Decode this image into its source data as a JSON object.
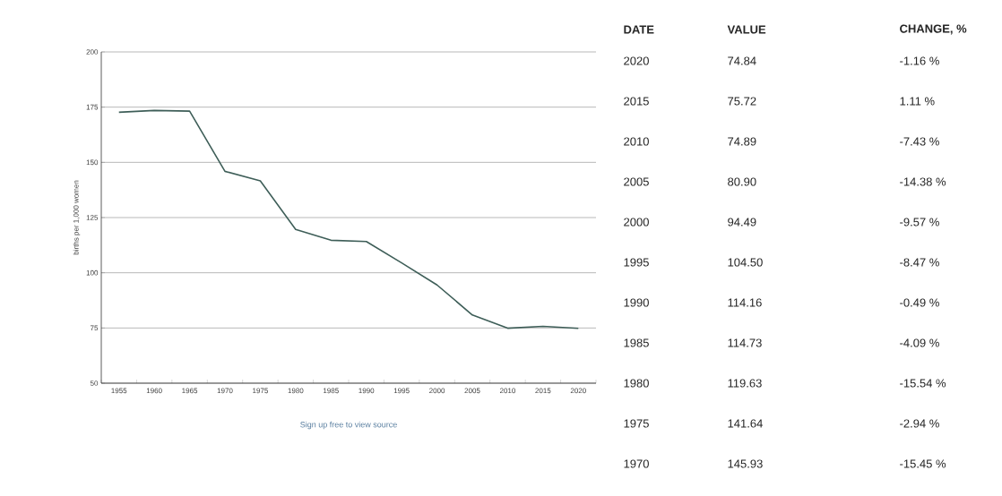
{
  "chart_data": {
    "type": "line",
    "ylabel": "births per 1,000 women",
    "categories": [
      "1955",
      "1960",
      "1965",
      "1970",
      "1975",
      "1980",
      "1985",
      "1990",
      "1995",
      "2000",
      "2005",
      "2010",
      "2015",
      "2020"
    ],
    "series": [
      {
        "color": "#3e5e58",
        "values": [
          172.7,
          173.5,
          173.2,
          145.93,
          141.64,
          119.63,
          114.73,
          114.16,
          104.5,
          94.49,
          80.9,
          74.89,
          75.72,
          74.84
        ]
      }
    ],
    "ylim": [
      50,
      200
    ],
    "yticks": [
      50,
      75,
      100,
      125,
      150,
      175,
      200
    ],
    "grid": "y",
    "marker": "none",
    "line_style": "solid",
    "annotations": [
      "Sign up free to view source",
      "DATE",
      "VALUE",
      "CHANGE, %",
      "74.84",
      "-1.16 %",
      "75.72",
      "1.11 %",
      "74.89",
      "-7.43 %",
      "80.90",
      "-14.38 %",
      "94.49",
      "-9.57 %",
      "104.50",
      "-8.47 %",
      "114.16",
      "-0.49 %",
      "114.73",
      "-4.09 %",
      "119.63",
      "-15.54 %",
      "141.64",
      "-2.94 %",
      "145.93",
      "-15.45 %"
    ]
  }
}
